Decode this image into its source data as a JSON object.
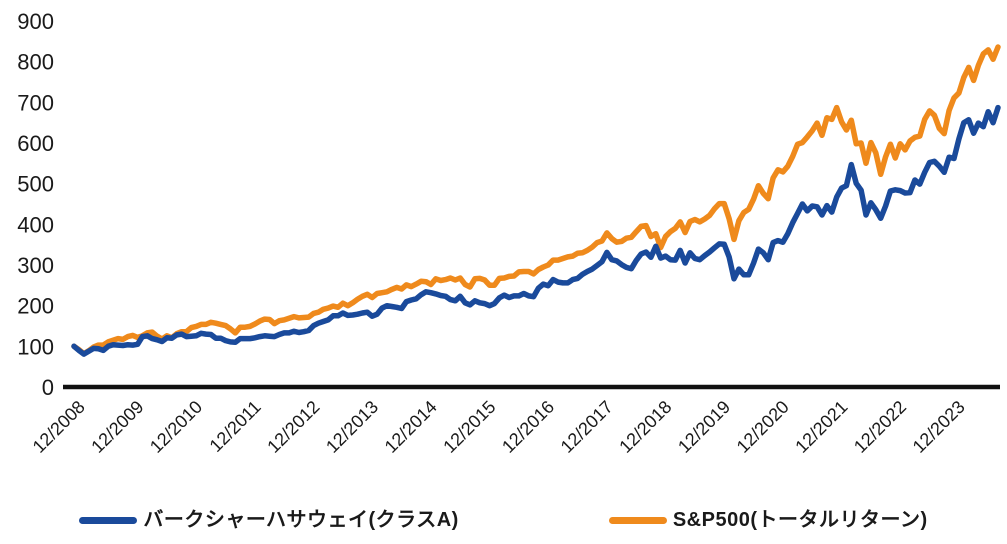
{
  "chart_data": {
    "type": "line",
    "title": "",
    "grid": false,
    "legend_position": "bottom",
    "axis_color": "#111111",
    "text_color": "#1a1a1a",
    "ylim": [
      0,
      900
    ],
    "y_ticks": [
      0,
      100,
      200,
      300,
      400,
      500,
      600,
      700,
      800,
      900
    ],
    "x_tick_labels": [
      "12/2008",
      "12/2009",
      "12/2010",
      "12/2011",
      "12/2012",
      "12/2013",
      "12/2014",
      "12/2015",
      "12/2016",
      "12/2017",
      "12/2018",
      "12/2019",
      "12/2020",
      "12/2021",
      "12/2022",
      "12/2023"
    ],
    "x_months_per_tick": 12,
    "x_start": "12/2008",
    "index_base": 100,
    "series": [
      {
        "name": "バークシャーハサウェイ(クラスA)",
        "color": "#1a4a9b",
        "values": [
          100,
          90,
          81,
          88,
          95,
          94,
          90,
          100,
          104,
          103,
          102,
          104,
          103,
          105,
          124,
          126,
          119,
          116,
          112,
          121,
          120,
          128,
          130,
          124,
          125,
          126,
          132,
          130,
          129,
          120,
          120,
          114,
          111,
          110,
          119,
          119,
          119,
          121,
          124,
          126,
          125,
          124,
          129,
          133,
          133,
          137,
          134,
          136,
          139,
          151,
          157,
          161,
          165,
          175,
          175,
          182,
          176,
          177,
          179,
          182,
          184,
          174,
          179,
          194,
          200,
          198,
          196,
          193,
          210,
          214,
          217,
          227,
          234,
          232,
          229,
          225,
          223,
          215,
          212,
          223,
          207,
          202,
          212,
          207,
          205,
          200,
          205,
          219,
          226,
          220,
          224,
          224,
          230,
          224,
          222,
          243,
          253,
          249,
          264,
          258,
          256,
          256,
          264,
          267,
          277,
          284,
          290,
          299,
          308,
          331,
          313,
          310,
          301,
          294,
          291,
          311,
          327,
          332,
          319,
          346,
          317,
          322,
          313,
          312,
          336,
          305,
          330,
          316,
          313,
          323,
          332,
          342,
          352,
          351,
          320,
          266,
          290,
          276,
          276,
          305,
          339,
          330,
          313,
          355,
          360,
          356,
          377,
          404,
          427,
          450,
          433,
          445,
          443,
          423,
          446,
          430,
          467,
          489,
          495,
          547,
          501,
          484,
          423,
          453,
          436,
          415,
          445,
          482,
          485,
          483,
          477,
          478,
          509,
          499,
          528,
          552,
          555,
          543,
          528,
          565,
          562,
          610,
          650,
          657,
          624,
          649,
          640,
          677,
          650,
          687
        ]
      },
      {
        "name": "S&P500(トータルリターン)",
        "color": "#ef8a1c",
        "values": [
          100,
          92,
          82,
          89,
          98,
          103,
          103,
          111,
          115,
          119,
          117,
          124,
          127,
          122,
          126,
          133,
          135,
          125,
          118,
          126,
          121,
          131,
          136,
          136,
          146,
          149,
          154,
          154,
          159,
          157,
          154,
          151,
          143,
          133,
          147,
          147,
          149,
          155,
          162,
          167,
          166,
          156,
          163,
          165,
          169,
          173,
          170,
          171,
          172,
          181,
          184,
          191,
          194,
          199,
          196,
          206,
          200,
          207,
          216,
          223,
          228,
          220,
          230,
          232,
          234,
          240,
          245,
          241,
          251,
          247,
          253,
          260,
          259,
          252,
          266,
          262,
          264,
          268,
          263,
          268,
          252,
          246,
          266,
          267,
          263,
          250,
          250,
          267,
          268,
          272,
          273,
          283,
          284,
          284,
          278,
          289,
          295,
          300,
          312,
          312,
          316,
          320,
          322,
          329,
          330,
          336,
          344,
          355,
          359,
          379,
          365,
          356,
          358,
          366,
          368,
          382,
          395,
          397,
          370,
          377,
          343,
          370,
          382,
          390,
          406,
          380,
          407,
          412,
          406,
          413,
          422,
          438,
          451,
          451,
          414,
          363,
          409,
          429,
          437,
          462,
          495,
          476,
          463,
          514,
          534,
          529,
          543,
          567,
          597,
          601,
          615,
          630,
          649,
          619,
          662,
          658,
          687,
          652,
          632,
          656,
          598,
          600,
          550,
          601,
          576,
          523,
          566,
          597,
          563,
          598,
          583,
          605,
          614,
          617,
          658,
          679,
          668,
          636,
          623,
          680,
          711,
          723,
          761,
          786,
          754,
          791,
          819,
          829,
          806,
          836
        ]
      }
    ]
  },
  "legend": {
    "items": [
      {
        "label": "バークシャーハサウェイ(クラスA)"
      },
      {
        "label": "S&P500(トータルリターン)"
      }
    ]
  }
}
